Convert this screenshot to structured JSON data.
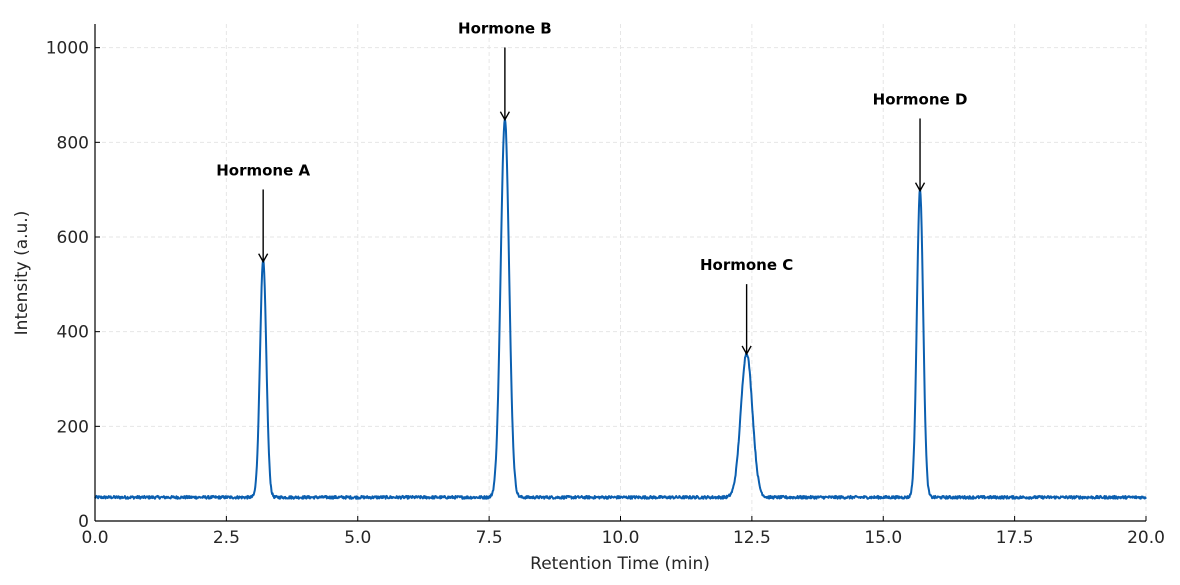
{
  "chart_data": {
    "type": "line",
    "title": "",
    "xlabel": "Retention Time (min)",
    "ylabel": "Intensity (a.u.)",
    "xlim": [
      0,
      20
    ],
    "ylim": [
      0,
      1050
    ],
    "grid": true,
    "x_ticks": [
      "0.0",
      "2.5",
      "5.0",
      "7.5",
      "10.0",
      "12.5",
      "15.0",
      "17.5",
      "20.0"
    ],
    "y_ticks": [
      "0",
      "200",
      "400",
      "600",
      "800",
      "1000"
    ],
    "series": [
      {
        "color": "#0b5fb0",
        "baseline": 50,
        "noise_amplitude": 3,
        "peaks": [
          {
            "name": "Hormone A",
            "retention_time": 3.2,
            "height": 550,
            "width_sd": 0.06
          },
          {
            "name": "Hormone B",
            "retention_time": 7.8,
            "height": 850,
            "width_sd": 0.08
          },
          {
            "name": "Hormone C",
            "retention_time": 12.4,
            "height": 355,
            "width_sd": 0.11
          },
          {
            "name": "Hormone D",
            "retention_time": 15.7,
            "height": 700,
            "width_sd": 0.06
          }
        ]
      }
    ],
    "annotations": [
      {
        "text": "Hormone A",
        "x": 3.2,
        "y": 550,
        "text_y": 730
      },
      {
        "text": "Hormone B",
        "x": 7.8,
        "y": 850,
        "text_y": 1030
      },
      {
        "text": "Hormone C",
        "x": 12.4,
        "y": 355,
        "text_y": 530
      },
      {
        "text": "Hormone D",
        "x": 15.7,
        "y": 700,
        "text_y": 880
      }
    ]
  }
}
